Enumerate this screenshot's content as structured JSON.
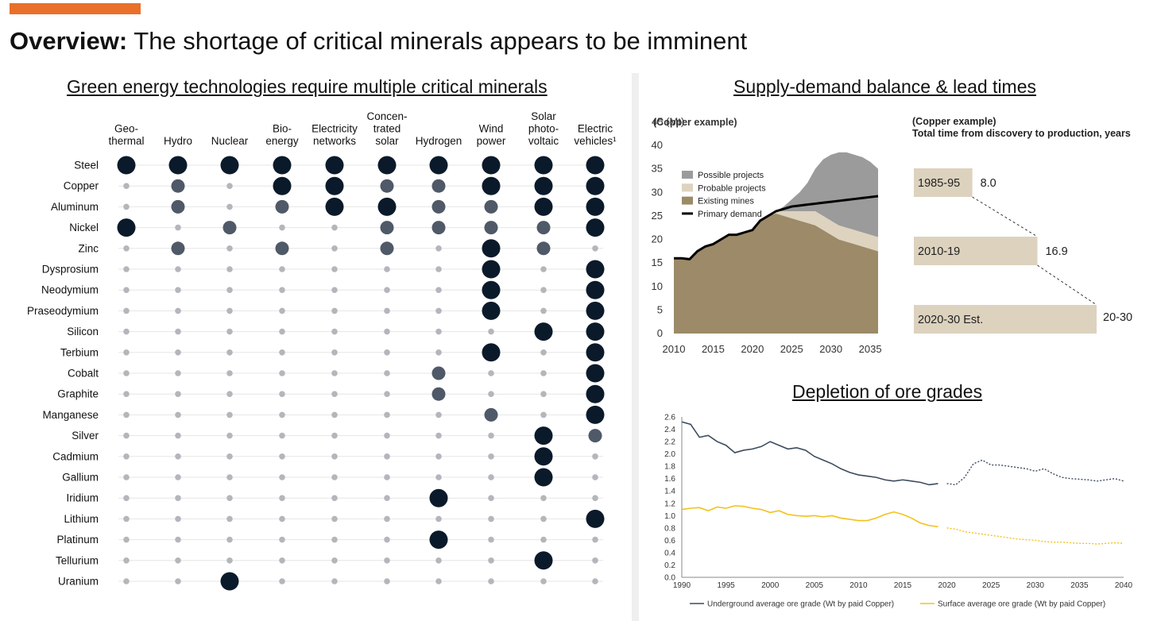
{
  "header": {
    "accent_color": "#e8702a",
    "title_bold": "Overview:",
    "title_rest": " The shortage of critical minerals appears to be imminent"
  },
  "matrix": {
    "heading": "Green energy technologies require multiple critical minerals",
    "columns": [
      [
        "Geo-",
        "thermal"
      ],
      [
        "Hydro"
      ],
      [
        "Nuclear"
      ],
      [
        "Bio-",
        "energy"
      ],
      [
        "Electricity",
        "networks"
      ],
      [
        "Concen-",
        "trated",
        "solar"
      ],
      [
        "Hydrogen"
      ],
      [
        "Wind",
        "power"
      ],
      [
        "Solar",
        "photo-",
        "voltaic"
      ],
      [
        "Electric",
        "vehicles¹"
      ]
    ],
    "rows": [
      {
        "mineral": "Steel",
        "levels": [
          3,
          3,
          3,
          3,
          3,
          3,
          3,
          3,
          3,
          3
        ]
      },
      {
        "mineral": "Copper",
        "levels": [
          1,
          2,
          1,
          3,
          3,
          2,
          2,
          3,
          3,
          3
        ]
      },
      {
        "mineral": "Aluminum",
        "levels": [
          1,
          2,
          1,
          2,
          3,
          3,
          2,
          2,
          3,
          3
        ]
      },
      {
        "mineral": "Nickel",
        "levels": [
          3,
          1,
          2,
          1,
          1,
          2,
          2,
          2,
          2,
          3
        ]
      },
      {
        "mineral": "Zinc",
        "levels": [
          1,
          2,
          1,
          2,
          1,
          2,
          1,
          3,
          2,
          1
        ]
      },
      {
        "mineral": "Dysprosium",
        "levels": [
          1,
          1,
          1,
          1,
          1,
          1,
          1,
          3,
          1,
          3
        ]
      },
      {
        "mineral": "Neodymium",
        "levels": [
          1,
          1,
          1,
          1,
          1,
          1,
          1,
          3,
          1,
          3
        ]
      },
      {
        "mineral": "Praseodymium",
        "levels": [
          1,
          1,
          1,
          1,
          1,
          1,
          1,
          3,
          1,
          3
        ]
      },
      {
        "mineral": "Silicon",
        "levels": [
          1,
          1,
          1,
          1,
          1,
          1,
          1,
          1,
          3,
          3
        ]
      },
      {
        "mineral": "Terbium",
        "levels": [
          1,
          1,
          1,
          1,
          1,
          1,
          1,
          3,
          1,
          3
        ]
      },
      {
        "mineral": "Cobalt",
        "levels": [
          1,
          1,
          1,
          1,
          1,
          1,
          2,
          1,
          1,
          3
        ]
      },
      {
        "mineral": "Graphite",
        "levels": [
          1,
          1,
          1,
          1,
          1,
          1,
          2,
          1,
          1,
          3
        ]
      },
      {
        "mineral": "Manganese",
        "levels": [
          1,
          1,
          1,
          1,
          1,
          1,
          1,
          2,
          1,
          3
        ]
      },
      {
        "mineral": "Silver",
        "levels": [
          1,
          1,
          1,
          1,
          1,
          1,
          1,
          1,
          3,
          2
        ]
      },
      {
        "mineral": "Cadmium",
        "levels": [
          1,
          1,
          1,
          1,
          1,
          1,
          1,
          1,
          3,
          1
        ]
      },
      {
        "mineral": "Gallium",
        "levels": [
          1,
          1,
          1,
          1,
          1,
          1,
          1,
          1,
          3,
          1
        ]
      },
      {
        "mineral": "Iridium",
        "levels": [
          1,
          1,
          1,
          1,
          1,
          1,
          3,
          1,
          1,
          1
        ]
      },
      {
        "mineral": "Lithium",
        "levels": [
          1,
          1,
          1,
          1,
          1,
          1,
          1,
          1,
          1,
          3
        ]
      },
      {
        "mineral": "Platinum",
        "levels": [
          1,
          1,
          1,
          1,
          1,
          1,
          3,
          1,
          1,
          1
        ]
      },
      {
        "mineral": "Tellurium",
        "levels": [
          1,
          1,
          1,
          1,
          1,
          1,
          1,
          1,
          3,
          1
        ]
      },
      {
        "mineral": "Uranium",
        "levels": [
          1,
          1,
          3,
          1,
          1,
          1,
          1,
          1,
          1,
          1
        ]
      }
    ],
    "level_colors": {
      "1": "#b3b6bb",
      "2": "#4f5967",
      "3": "#0b1a2a"
    }
  },
  "supply": {
    "heading": "Supply-demand balance & lead times"
  },
  "depletion": {
    "heading": "Depletion of ore grades"
  },
  "chart_data": [
    {
      "type": "area",
      "note": "(Copper example)",
      "ylabel": "45 (Mt)",
      "x": [
        2010,
        2011,
        2012,
        2013,
        2014,
        2015,
        2016,
        2017,
        2018,
        2019,
        2020,
        2021,
        2022,
        2023,
        2024,
        2025,
        2026,
        2027,
        2028,
        2029,
        2030,
        2031,
        2032,
        2033,
        2034,
        2035,
        2036
      ],
      "ylim": [
        0,
        45
      ],
      "xticks": [
        2010,
        2015,
        2020,
        2025,
        2030,
        2035
      ],
      "yticks": [
        0,
        5,
        10,
        15,
        20,
        25,
        30,
        35,
        40
      ],
      "stacked": true,
      "series": [
        {
          "name": "Existing mines",
          "color": "#9c8a68",
          "values": [
            16,
            16,
            15.8,
            17.5,
            18.5,
            19,
            20,
            21,
            21,
            21.5,
            22,
            24,
            25,
            25.5,
            25,
            24.5,
            24,
            23.5,
            23,
            22,
            21,
            20,
            19.5,
            19,
            18.5,
            18,
            17.5
          ]
        },
        {
          "name": "Probable projects",
          "color": "#ddd3bf",
          "values": [
            0,
            0,
            0,
            0,
            0,
            0,
            0,
            0,
            0,
            0,
            0,
            0,
            0,
            0.5,
            1,
            1.5,
            2,
            2.5,
            3,
            3,
            3,
            3,
            3,
            3,
            3,
            3,
            3
          ]
        },
        {
          "name": "Possible projects",
          "color": "#9b9b9b",
          "values": [
            0,
            0,
            0,
            0,
            0,
            0,
            0,
            0,
            0,
            0,
            0,
            0,
            0,
            0,
            1,
            2.5,
            4,
            6,
            9,
            12,
            14,
            15.5,
            16,
            16,
            16,
            15.5,
            14.5
          ]
        },
        {
          "name": "Primary demand",
          "type": "line",
          "color": "#000000",
          "values": [
            16,
            16,
            15.8,
            17.5,
            18.5,
            19,
            20,
            21,
            21,
            21.5,
            22,
            24,
            25,
            26,
            26.5,
            27,
            27.2,
            27.4,
            27.6,
            27.8,
            28,
            28.2,
            28.4,
            28.6,
            28.8,
            29,
            29.2
          ]
        }
      ],
      "legend_position": "top-left"
    },
    {
      "type": "bar",
      "note": "(Copper example)",
      "title": "Total time from discovery to production, years",
      "categories": [
        "1985-95",
        "2010-19",
        "2020-30 Est."
      ],
      "values": [
        8.0,
        16.9,
        25
      ],
      "value_labels": [
        "8.0",
        "16.9",
        "20-30"
      ],
      "orientation": "horizontal",
      "color": "#dcd2be"
    },
    {
      "type": "line",
      "x": [
        1990,
        1991,
        1992,
        1993,
        1994,
        1995,
        1996,
        1997,
        1998,
        1999,
        2000,
        2001,
        2002,
        2003,
        2004,
        2005,
        2006,
        2007,
        2008,
        2009,
        2010,
        2011,
        2012,
        2013,
        2014,
        2015,
        2016,
        2017,
        2018,
        2019,
        2020,
        2021,
        2022,
        2023,
        2024,
        2025,
        2026,
        2027,
        2028,
        2029,
        2030,
        2031,
        2032,
        2033,
        2034,
        2035,
        2036,
        2037,
        2038,
        2039,
        2040
      ],
      "ylim": [
        0,
        2.6
      ],
      "xlim": [
        1990,
        2040
      ],
      "xticks": [
        1990,
        1995,
        2000,
        2005,
        2010,
        2015,
        2020,
        2025,
        2030,
        2035,
        2040
      ],
      "yticks": [
        0.0,
        0.2,
        0.4,
        0.6,
        0.8,
        1.0,
        1.2,
        1.4,
        1.6,
        1.8,
        2.0,
        2.2,
        2.4,
        2.6
      ],
      "historical_end": 2019,
      "series": [
        {
          "name": "Underground average ore grade (Wt by paid Copper)",
          "color": "#3d4b5e",
          "values": [
            2.52,
            2.48,
            2.27,
            2.3,
            2.2,
            2.14,
            2.02,
            2.06,
            2.08,
            2.12,
            2.2,
            2.14,
            2.08,
            2.1,
            2.06,
            1.96,
            1.9,
            1.84,
            1.76,
            1.7,
            1.66,
            1.64,
            1.62,
            1.58,
            1.56,
            1.58,
            1.56,
            1.54,
            1.5,
            1.52,
            1.52,
            1.5,
            1.62,
            1.84,
            1.9,
            1.82,
            1.82,
            1.8,
            1.78,
            1.76,
            1.72,
            1.76,
            1.68,
            1.62,
            1.6,
            1.59,
            1.58,
            1.56,
            1.58,
            1.6,
            1.56
          ]
        },
        {
          "name": "Surface average ore grade (Wt by paid Copper)",
          "color": "#f2c21b",
          "values": [
            1.1,
            1.12,
            1.13,
            1.08,
            1.14,
            1.12,
            1.16,
            1.15,
            1.12,
            1.1,
            1.05,
            1.08,
            1.02,
            1.0,
            0.99,
            1.0,
            0.98,
            1.0,
            0.96,
            0.94,
            0.92,
            0.92,
            0.96,
            1.02,
            1.06,
            1.02,
            0.96,
            0.88,
            0.84,
            0.82,
            0.8,
            0.78,
            0.74,
            0.72,
            0.7,
            0.68,
            0.66,
            0.64,
            0.62,
            0.61,
            0.6,
            0.58,
            0.57,
            0.57,
            0.56,
            0.55,
            0.55,
            0.54,
            0.55,
            0.56,
            0.55
          ]
        }
      ],
      "legend_position": "bottom"
    }
  ]
}
